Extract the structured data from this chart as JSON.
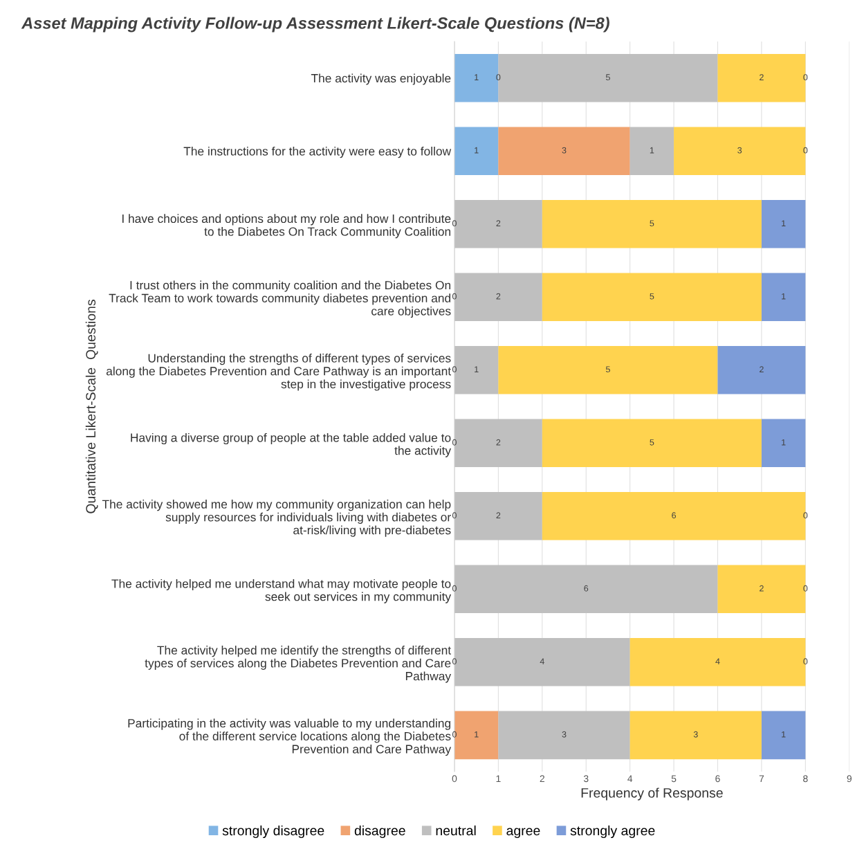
{
  "chart_data": {
    "type": "bar",
    "orientation": "horizontal",
    "stacked": true,
    "title": "Asset Mapping Activity Follow-up Assessment Likert-Scale Questions (N=8)",
    "xlabel": "Frequency of Response",
    "ylabel": "Quantitative Likert-Scale  Questions",
    "categories": [
      "The activity was enjoyable",
      "The instructions for the activity were easy to follow",
      "I have choices and options about my role and how I contribute to the Diabetes On Track Community Coalition",
      "I trust others in the community coalition and the Diabetes On Track Team to work towards community diabetes prevention and care objectives",
      "Understanding the strengths of different types of services along the Diabetes Prevention and Care Pathway is an important step in the investigative process",
      "Having a diverse group of people at the table added value to the activity",
      "The activity showed me how my community organization can help supply resources for individuals living with diabetes or at-risk/living with pre-diabetes",
      "The activity helped me understand what may motivate people to seek out services in my community",
      "The activity helped me identify the strengths of different types of services along the Diabetes Prevention and Care Pathway",
      "Participating in the activity was valuable to my understanding of the different service locations along the Diabetes Prevention and Care Pathway"
    ],
    "series": [
      {
        "name": "strongly disagree",
        "color": "#82b5e4",
        "values": [
          1,
          1,
          null,
          null,
          null,
          null,
          null,
          null,
          null,
          null
        ]
      },
      {
        "name": "disagree",
        "color": "#f0a370",
        "values": [
          null,
          3,
          null,
          null,
          null,
          null,
          null,
          null,
          null,
          1
        ]
      },
      {
        "name": "neutral",
        "color": "#bfbfbf",
        "values": [
          5,
          1,
          2,
          2,
          1,
          2,
          2,
          6,
          4,
          3
        ]
      },
      {
        "name": "agree",
        "color": "#ffd34f",
        "values": [
          2,
          3,
          5,
          5,
          5,
          5,
          6,
          2,
          4,
          3
        ]
      },
      {
        "name": "strongly agree",
        "color": "#7d9cd8",
        "values": [
          null,
          null,
          1,
          1,
          2,
          1,
          null,
          null,
          null,
          1
        ]
      }
    ],
    "annotations": [
      {
        "text": "0",
        "x": 1,
        "y": "The activity was enjoyable"
      },
      {
        "text": "0",
        "x": 8,
        "y": "The activity was enjoyable"
      },
      {
        "text": "0",
        "x": 8,
        "y": "The instructions for the activity were easy to follow"
      },
      {
        "text": "0",
        "x": 0,
        "y": "I have choices and options about my role and how I contribute to the Diabetes On Track Community Coalition"
      },
      {
        "text": "0",
        "x": 0,
        "y": "I trust others in the community coalition and the Diabetes On Track Team to work towards community diabetes prevention and care objectives"
      },
      {
        "text": "0",
        "x": 0,
        "y": "Understanding the strengths of different types of services along the Diabetes Prevention and Care Pathway is an important step in the investigative process"
      },
      {
        "text": "0",
        "x": 0,
        "y": "Having a diverse group of people at the table added value to the activity"
      },
      {
        "text": "0",
        "x": 0,
        "y": "The activity showed me how my community organization can help supply resources for individuals living with diabetes or at-risk/living with pre-diabetes"
      },
      {
        "text": "0",
        "x": 8,
        "y": "The activity showed me how my community organization can help supply resources for individuals living with diabetes or at-risk/living with pre-diabetes"
      },
      {
        "text": "0",
        "x": 0,
        "y": "The activity helped me understand what may motivate people to seek out services in my community"
      },
      {
        "text": "0",
        "x": 8,
        "y": "The activity helped me understand what may motivate people to seek out services in my community"
      },
      {
        "text": "0",
        "x": 0,
        "y": "The activity helped me identify the strengths of different types of services along the Diabetes Prevention and Care Pathway"
      },
      {
        "text": "0",
        "x": 8,
        "y": "The activity helped me identify the strengths of different types of services along the Diabetes Prevention and Care Pathway"
      },
      {
        "text": "0",
        "x": 0,
        "y": "Participating in the activity was valuable to my understanding of the different service locations along the Diabetes Prevention and Care Pathway"
      }
    ],
    "xlim": [
      0,
      9
    ],
    "xticks": [
      0,
      1,
      2,
      3,
      4,
      5,
      6,
      7,
      8,
      9
    ],
    "grid": "x",
    "legend": "bottom",
    "data_labels": true
  }
}
